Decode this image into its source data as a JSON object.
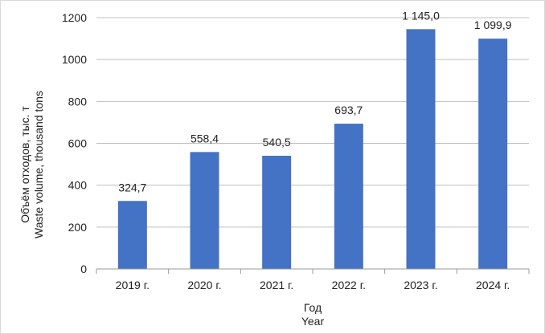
{
  "chart_data": {
    "type": "bar",
    "categories": [
      "2019 г.",
      "2020 г.",
      "2021 г.",
      "2022 г.",
      "2023 г.",
      "2024 г."
    ],
    "values": [
      324.7,
      558.4,
      540.5,
      693.7,
      1145.0,
      1099.9
    ],
    "data_labels": [
      "324,7",
      "558,4",
      "540,5",
      "693,7",
      "1 145,0",
      "1 099,9"
    ],
    "ylim": [
      0,
      1200
    ],
    "yticks": [
      0,
      200,
      400,
      600,
      800,
      1000,
      1200
    ],
    "ylabel": [
      "Объём отходов, тыс. т",
      "Waste volume, thousand tons"
    ],
    "xlabel": [
      "Год",
      "Year"
    ],
    "grid": true,
    "bar_color": "#4472c4",
    "grid_color": "#bfbfbf"
  }
}
